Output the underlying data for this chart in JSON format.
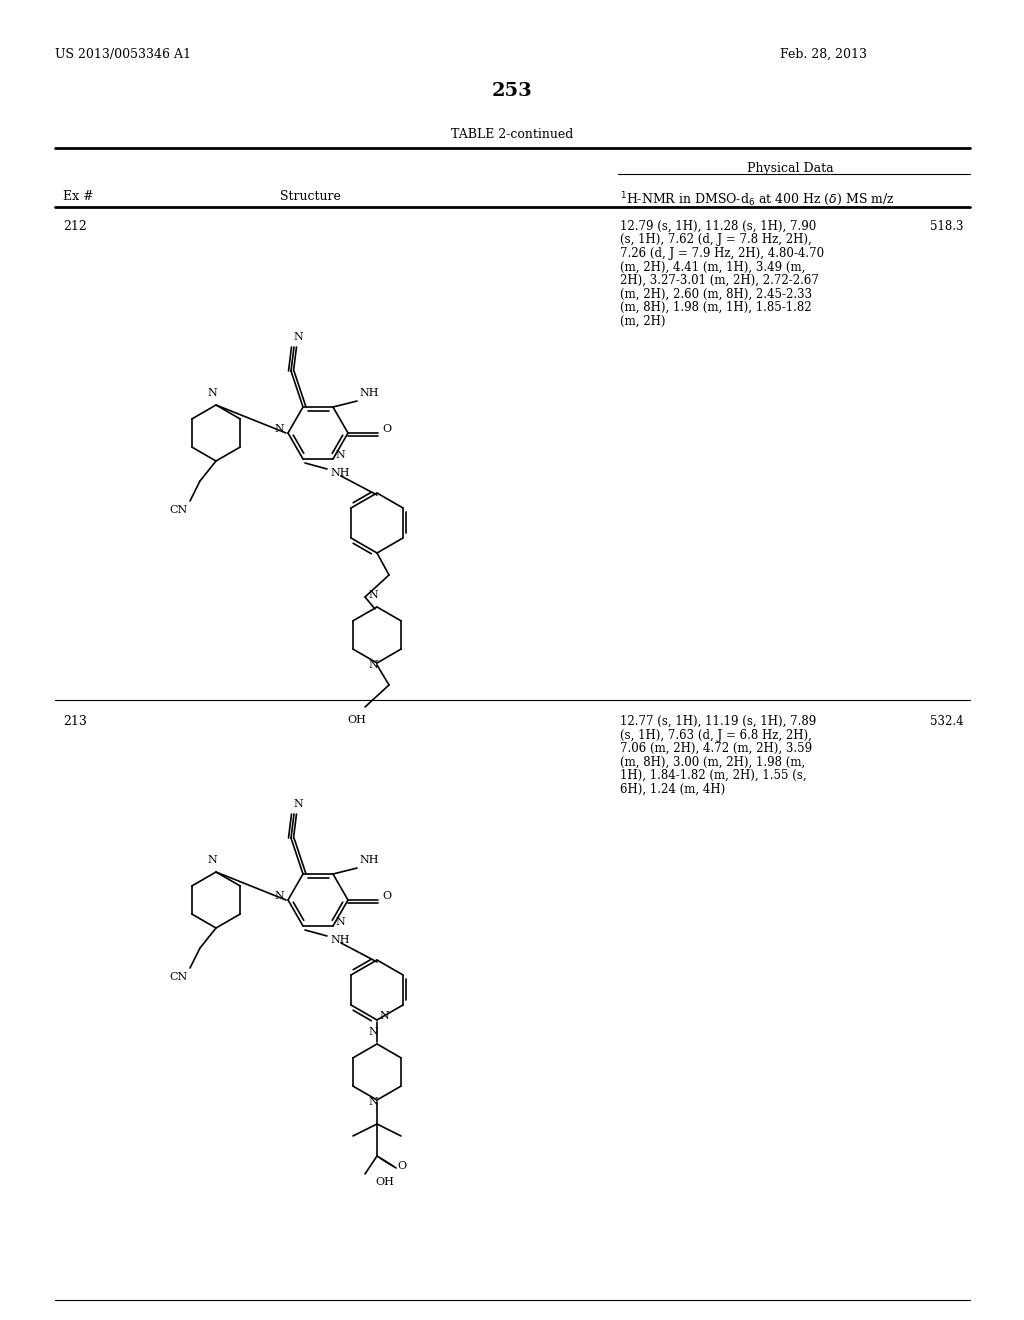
{
  "page_number": "253",
  "patent_number": "US 2013/0053346 A1",
  "patent_date": "Feb. 28, 2013",
  "table_title": "TABLE 2-continued",
  "physical_data_label": "Physical Data",
  "nmr_header": "$^1$H-NMR in DMSO-d$_6$ at 400 Hz ($\\delta$) MS m/z",
  "rows": [
    {
      "ex_num": "212",
      "nmr_lines": [
        "12.79 (s, 1H), 11.28 (s, 1H), 7.90",
        "(s, 1H), 7.62 (d, J = 7.8 Hz, 2H),",
        "7.26 (d, J = 7.9 Hz, 2H), 4.80-4.70",
        "(m, 2H), 4.41 (m, 1H), 3.49 (m,",
        "2H), 3.27-3.01 (m, 2H), 2.72-2.67",
        "(m, 2H), 2.60 (m, 8H), 2.45-2.33",
        "(m, 8H), 1.98 (m, 1H), 1.85-1.82",
        "(m, 2H)"
      ],
      "ms": "518.3"
    },
    {
      "ex_num": "213",
      "nmr_lines": [
        "12.77 (s, 1H), 11.19 (s, 1H), 7.89",
        "(s, 1H), 7.63 (d, J = 6.8 Hz, 2H),",
        "7.06 (m, 2H), 4.72 (m, 2H), 3.59",
        "(m, 8H), 3.00 (m, 2H), 1.98 (m,",
        "1H), 1.84-1.82 (m, 2H), 1.55 (s,",
        "6H), 1.24 (m, 4H)"
      ],
      "ms": "532.4"
    }
  ],
  "bg_color": "#ffffff",
  "text_color": "#000000",
  "line_color": "#000000"
}
